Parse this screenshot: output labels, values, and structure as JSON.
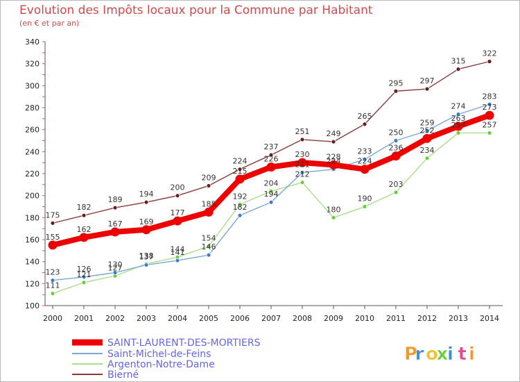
{
  "chart_data": {
    "type": "line",
    "title": "Evolution des Impôts locaux pour la Commune par Habitant",
    "subtitle": "(en € et par an)",
    "x": [
      "2000",
      "2001",
      "2002",
      "2003",
      "2004",
      "2005",
      "2006",
      "2007",
      "2008",
      "2009",
      "2010",
      "2011",
      "2012",
      "2013",
      "2014"
    ],
    "yticks": [
      "100",
      "120",
      "140",
      "160",
      "180",
      "200",
      "220",
      "240",
      "260",
      "280",
      "300",
      "320",
      "340"
    ],
    "ylim": [
      100,
      340
    ],
    "series": [
      {
        "name": "SAINT-LAURENT-DES-MORTIERS",
        "color": "#ee0000",
        "values": [
          155,
          162,
          167,
          169,
          177,
          185,
          215,
          226,
          230,
          228,
          224,
          236,
          252,
          263,
          273
        ],
        "labels": [
          "155",
          "162",
          "167",
          "169",
          "177",
          "185",
          "215",
          "226",
          "230",
          "228",
          "224",
          "236",
          "252",
          "263",
          "273"
        ]
      },
      {
        "name": "Saint-Michel-de-Feins",
        "color": "#7ba7d4",
        "marker": "#3a7fcf",
        "values": [
          123,
          126,
          130,
          137,
          141,
          146,
          182,
          194,
          221,
          224,
          233,
          250,
          259,
          274,
          283
        ],
        "labels": [
          "123",
          "126",
          "130",
          "137",
          "141",
          "146",
          "182",
          "194",
          "221",
          "224",
          "233",
          "250",
          "259",
          "274",
          "283"
        ]
      },
      {
        "name": "Argenton-Notre-Dame",
        "color": "#a8de88",
        "marker": "#6acd3c",
        "values": [
          111,
          121,
          127,
          138,
          144,
          154,
          192,
          204,
          212,
          180,
          190,
          203,
          234,
          257,
          257
        ],
        "labels": [
          "111",
          "121",
          "127",
          "138",
          "144",
          "154",
          "192",
          "204",
          "212",
          "180",
          "190",
          "203",
          "234",
          "257",
          "257"
        ]
      },
      {
        "name": "Bierné",
        "color": "#8b3a3a",
        "marker": "#6b1c1c",
        "values": [
          175,
          182,
          189,
          194,
          200,
          209,
          224,
          237,
          251,
          249,
          265,
          295,
          297,
          315,
          322
        ],
        "labels": [
          "175",
          "182",
          "189",
          "194",
          "200",
          "209",
          "224",
          "237",
          "251",
          "249",
          "265",
          "295",
          "297",
          "315",
          "322"
        ]
      }
    ],
    "legend_position": "bottom-left",
    "grid": false
  },
  "brand": {
    "letters": [
      "P",
      "r",
      "o",
      "x",
      "i",
      "t",
      "i"
    ],
    "colors": [
      "#f2992e",
      "#3a8fd8",
      "#f2c12e",
      "#6acd3c",
      "#3a8fd8",
      "#e84a8a",
      "#f2992e"
    ]
  }
}
